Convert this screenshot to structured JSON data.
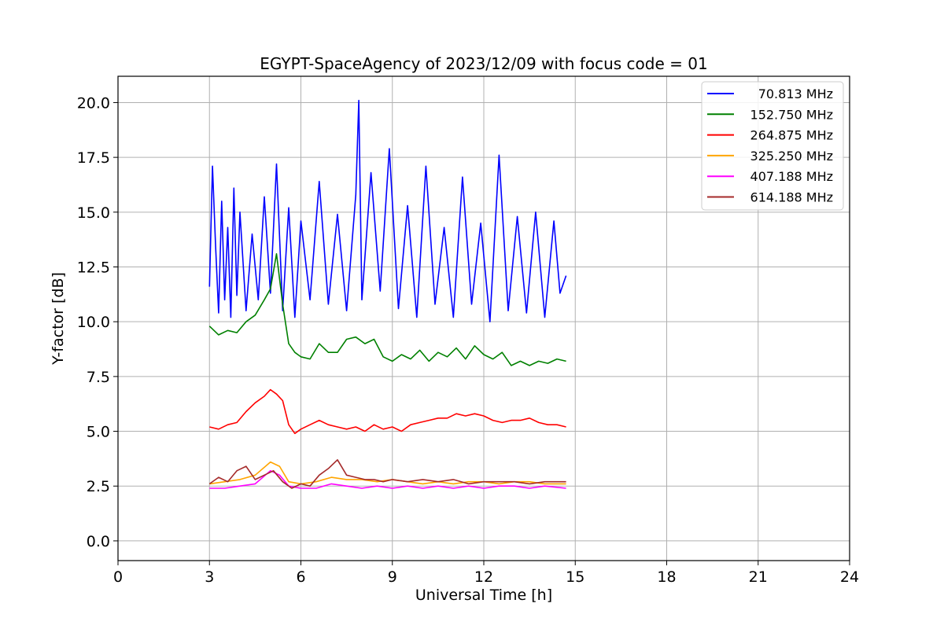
{
  "chart_data": {
    "type": "line",
    "title": "EGYPT-SpaceAgency of 2023/12/09 with focus code = 01",
    "xlabel": "Universal Time [h]",
    "ylabel": "Y-factor [dB]",
    "xlim": [
      0,
      24
    ],
    "ylim": [
      -0.9,
      21.2
    ],
    "xticks": [
      0,
      3,
      6,
      9,
      12,
      15,
      18,
      21,
      24
    ],
    "xtick_labels": [
      "0",
      "3",
      "6",
      "9",
      "12",
      "15",
      "18",
      "21",
      "24"
    ],
    "yticks": [
      0,
      2.5,
      5,
      7.5,
      10,
      12.5,
      15,
      17.5,
      20
    ],
    "ytick_labels": [
      "0.0",
      "2.5",
      "5.0",
      "7.5",
      "10.0",
      "12.5",
      "15.0",
      "17.5",
      "20.0"
    ],
    "grid": true,
    "legend_position": "top-right",
    "series": [
      {
        "name": "70.813 MHz",
        "color": "#0000ff",
        "x": [
          3.0,
          3.1,
          3.2,
          3.3,
          3.4,
          3.5,
          3.6,
          3.7,
          3.8,
          3.9,
          4.0,
          4.2,
          4.4,
          4.6,
          4.8,
          5.0,
          5.2,
          5.4,
          5.6,
          5.8,
          6.0,
          6.3,
          6.6,
          6.9,
          7.2,
          7.5,
          7.8,
          7.9,
          8.0,
          8.3,
          8.6,
          8.9,
          9.2,
          9.5,
          9.8,
          10.1,
          10.4,
          10.7,
          11.0,
          11.3,
          11.6,
          11.9,
          12.2,
          12.5,
          12.8,
          13.1,
          13.4,
          13.7,
          14.0,
          14.3,
          14.5,
          14.7
        ],
        "y": [
          11.6,
          17.1,
          13.5,
          10.4,
          15.5,
          11.0,
          14.3,
          10.2,
          16.1,
          11.2,
          15.0,
          10.5,
          14.0,
          11.0,
          15.7,
          11.3,
          17.2,
          10.5,
          15.2,
          10.2,
          14.6,
          11.0,
          16.4,
          10.8,
          14.9,
          10.5,
          15.8,
          20.1,
          11.0,
          16.8,
          11.4,
          17.9,
          10.6,
          15.3,
          10.2,
          17.1,
          10.8,
          14.3,
          10.2,
          16.6,
          10.8,
          14.5,
          10.0,
          17.6,
          10.5,
          14.8,
          10.4,
          15.0,
          10.2,
          14.6,
          11.3,
          12.1
        ]
      },
      {
        "name": "152.750 MHz",
        "color": "#008000",
        "x": [
          3.0,
          3.3,
          3.6,
          3.9,
          4.2,
          4.5,
          4.8,
          5.0,
          5.2,
          5.4,
          5.6,
          5.8,
          6.0,
          6.3,
          6.6,
          6.9,
          7.2,
          7.5,
          7.8,
          8.1,
          8.4,
          8.7,
          9.0,
          9.3,
          9.6,
          9.9,
          10.2,
          10.5,
          10.8,
          11.1,
          11.4,
          11.7,
          12.0,
          12.3,
          12.6,
          12.9,
          13.2,
          13.5,
          13.8,
          14.1,
          14.4,
          14.7
        ],
        "y": [
          9.8,
          9.4,
          9.6,
          9.5,
          10.0,
          10.3,
          11.0,
          11.5,
          13.1,
          10.8,
          9.0,
          8.6,
          8.4,
          8.3,
          9.0,
          8.6,
          8.6,
          9.2,
          9.3,
          9.0,
          9.2,
          8.4,
          8.2,
          8.5,
          8.3,
          8.7,
          8.2,
          8.6,
          8.4,
          8.8,
          8.3,
          8.9,
          8.5,
          8.3,
          8.6,
          8.0,
          8.2,
          8.0,
          8.2,
          8.1,
          8.3,
          8.2
        ]
      },
      {
        "name": "264.875 MHz",
        "color": "#ff0000",
        "x": [
          3.0,
          3.3,
          3.6,
          3.9,
          4.2,
          4.5,
          4.8,
          5.0,
          5.2,
          5.4,
          5.6,
          5.8,
          6.0,
          6.3,
          6.6,
          6.9,
          7.2,
          7.5,
          7.8,
          8.1,
          8.4,
          8.7,
          9.0,
          9.3,
          9.6,
          9.9,
          10.2,
          10.5,
          10.8,
          11.1,
          11.4,
          11.7,
          12.0,
          12.3,
          12.6,
          12.9,
          13.2,
          13.5,
          13.8,
          14.1,
          14.4,
          14.7
        ],
        "y": [
          5.2,
          5.1,
          5.3,
          5.4,
          5.9,
          6.3,
          6.6,
          6.9,
          6.7,
          6.4,
          5.3,
          4.9,
          5.1,
          5.3,
          5.5,
          5.3,
          5.2,
          5.1,
          5.2,
          5.0,
          5.3,
          5.1,
          5.2,
          5.0,
          5.3,
          5.4,
          5.5,
          5.6,
          5.6,
          5.8,
          5.7,
          5.8,
          5.7,
          5.5,
          5.4,
          5.5,
          5.5,
          5.6,
          5.4,
          5.3,
          5.3,
          5.2
        ]
      },
      {
        "name": "325.250 MHz",
        "color": "#ffa500",
        "x": [
          3.0,
          3.5,
          4.0,
          4.5,
          5.0,
          5.3,
          5.6,
          6.0,
          6.5,
          7.0,
          7.5,
          8.0,
          8.5,
          9.0,
          9.5,
          10.0,
          10.5,
          11.0,
          11.5,
          12.0,
          12.5,
          13.0,
          13.5,
          14.0,
          14.7
        ],
        "y": [
          2.6,
          2.7,
          2.8,
          3.0,
          3.6,
          3.4,
          2.7,
          2.6,
          2.7,
          2.9,
          2.8,
          2.8,
          2.7,
          2.8,
          2.7,
          2.6,
          2.7,
          2.6,
          2.7,
          2.7,
          2.6,
          2.7,
          2.7,
          2.6,
          2.6
        ]
      },
      {
        "name": "407.188 MHz",
        "color": "#ff00ff",
        "x": [
          3.0,
          3.5,
          4.0,
          4.5,
          5.0,
          5.3,
          5.6,
          6.0,
          6.5,
          7.0,
          7.5,
          8.0,
          8.5,
          9.0,
          9.5,
          10.0,
          10.5,
          11.0,
          11.5,
          12.0,
          12.5,
          13.0,
          13.5,
          14.0,
          14.7
        ],
        "y": [
          2.4,
          2.4,
          2.5,
          2.6,
          3.2,
          3.0,
          2.5,
          2.4,
          2.4,
          2.6,
          2.5,
          2.4,
          2.5,
          2.4,
          2.5,
          2.4,
          2.5,
          2.4,
          2.5,
          2.4,
          2.5,
          2.5,
          2.4,
          2.5,
          2.4
        ]
      },
      {
        "name": "614.188 MHz",
        "color": "#a52a2a",
        "x": [
          3.0,
          3.3,
          3.6,
          3.9,
          4.2,
          4.5,
          4.8,
          5.1,
          5.4,
          5.7,
          6.0,
          6.3,
          6.6,
          6.9,
          7.2,
          7.5,
          7.8,
          8.1,
          8.4,
          8.7,
          9.0,
          9.5,
          10.0,
          10.5,
          11.0,
          11.5,
          12.0,
          12.5,
          13.0,
          13.5,
          14.0,
          14.7
        ],
        "y": [
          2.6,
          2.9,
          2.7,
          3.2,
          3.4,
          2.8,
          3.0,
          3.2,
          2.7,
          2.4,
          2.6,
          2.5,
          3.0,
          3.3,
          3.7,
          3.0,
          2.9,
          2.8,
          2.8,
          2.7,
          2.8,
          2.7,
          2.8,
          2.7,
          2.8,
          2.6,
          2.7,
          2.7,
          2.7,
          2.6,
          2.7,
          2.7
        ]
      }
    ]
  }
}
